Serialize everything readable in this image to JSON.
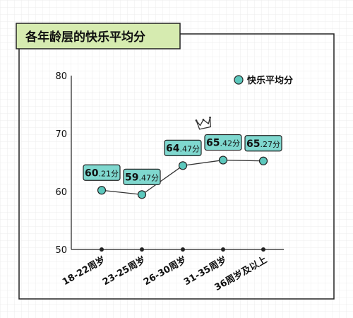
{
  "chart_data": {
    "type": "line",
    "title": "各年龄层的快乐平均分",
    "categories": [
      "18-22周岁",
      "23-25周岁",
      "26-30周岁",
      "31-35周岁",
      "36周岁及以上"
    ],
    "series": [
      {
        "name": "快乐平均分",
        "values": [
          60.21,
          59.47,
          64.47,
          65.42,
          65.27
        ]
      }
    ],
    "data_labels": [
      {
        "main": "60",
        "sub": ".21分"
      },
      {
        "main": "59",
        "sub": ".47分"
      },
      {
        "main": "64",
        "sub": ".47分"
      },
      {
        "main": "65",
        "sub": ".42分"
      },
      {
        "main": "65",
        "sub": ".27分"
      }
    ],
    "yticks": [
      "50",
      "60",
      "70",
      "80"
    ],
    "ylim": [
      50,
      80
    ],
    "highlight": {
      "category_index": 3,
      "icon": "crown-icon"
    },
    "legend_position": "top-right",
    "grid": true,
    "colors": {
      "title_bg": "#d6ebb0",
      "marker": "#5cc8bd",
      "label_bg": "#7fd8cf",
      "line": "#333333",
      "grid": "#ececec"
    }
  }
}
